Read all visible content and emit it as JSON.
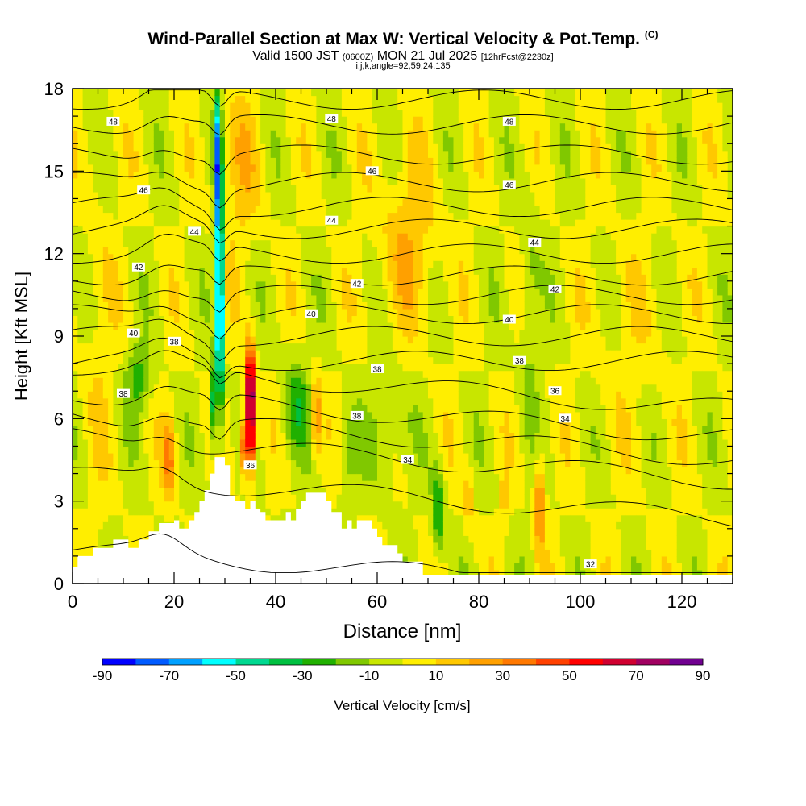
{
  "chart_data": {
    "type": "heatmap",
    "title": "Wind-Parallel Section at Max W: Vertical Velocity & Pot.Temp.",
    "title_mark": "(C)",
    "subtitle_prefix": "Valid 1500 JST",
    "subtitle_mid": "(0600Z)",
    "subtitle_date": "MON 21 Jul 2025",
    "subtitle_suffix": "[12hrFcst@2230z]",
    "subtitle2": "i,j,k,angle=92,59,24,135",
    "xlabel": "Distance [nm]",
    "ylabel": "Height [Kft MSL]",
    "xlim": [
      0,
      130
    ],
    "ylim": [
      0,
      18
    ],
    "xticks": [
      "0",
      "20",
      "40",
      "60",
      "80",
      "100",
      "120"
    ],
    "yticks": [
      "0",
      "3",
      "6",
      "9",
      "12",
      "15",
      "18"
    ],
    "colorbar": {
      "label": "Vertical Velocity [cm/s]",
      "tick_labels": [
        "-90",
        "-70",
        "-50",
        "-30",
        "-10",
        "10",
        "30",
        "50",
        "70",
        "90"
      ],
      "bounds": [
        -90,
        90
      ],
      "colors": [
        "#0000ff",
        "#005aff",
        "#00a0ff",
        "#00ffff",
        "#00d890",
        "#00c040",
        "#20b000",
        "#80c800",
        "#c8e600",
        "#ffee00",
        "#ffc800",
        "#ffa000",
        "#ff7800",
        "#ff4000",
        "#ff0000",
        "#d00030",
        "#a00060",
        "#700090"
      ]
    },
    "isentrope_levels": [
      32,
      34,
      36,
      38,
      40,
      42,
      44,
      46,
      48
    ],
    "isentrope_labels": [
      {
        "x": 8,
        "y": 16.8,
        "text": "48"
      },
      {
        "x": 51,
        "y": 16.9,
        "text": "48"
      },
      {
        "x": 86,
        "y": 16.8,
        "text": "48"
      },
      {
        "x": 14,
        "y": 14.3,
        "text": "46"
      },
      {
        "x": 59,
        "y": 15.0,
        "text": "46"
      },
      {
        "x": 86,
        "y": 14.5,
        "text": "46"
      },
      {
        "x": 24,
        "y": 12.8,
        "text": "44"
      },
      {
        "x": 51,
        "y": 13.2,
        "text": "44"
      },
      {
        "x": 91,
        "y": 12.4,
        "text": "44"
      },
      {
        "x": 13,
        "y": 11.5,
        "text": "42"
      },
      {
        "x": 56,
        "y": 10.9,
        "text": "42"
      },
      {
        "x": 95,
        "y": 10.7,
        "text": "42"
      },
      {
        "x": 12,
        "y": 9.1,
        "text": "40"
      },
      {
        "x": 47,
        "y": 9.8,
        "text": "40"
      },
      {
        "x": 86,
        "y": 9.6,
        "text": "40"
      },
      {
        "x": 20,
        "y": 8.8,
        "text": "38"
      },
      {
        "x": 60,
        "y": 7.8,
        "text": "38"
      },
      {
        "x": 88,
        "y": 8.1,
        "text": "38"
      },
      {
        "x": 10,
        "y": 6.9,
        "text": "38"
      },
      {
        "x": 56,
        "y": 6.1,
        "text": "38"
      },
      {
        "x": 95,
        "y": 7.0,
        "text": "36"
      },
      {
        "x": 35,
        "y": 4.3,
        "text": "36"
      },
      {
        "x": 66,
        "y": 4.5,
        "text": "34"
      },
      {
        "x": 97,
        "y": 6.0,
        "text": "34"
      },
      {
        "x": 102,
        "y": 0.7,
        "text": "32"
      }
    ]
  }
}
